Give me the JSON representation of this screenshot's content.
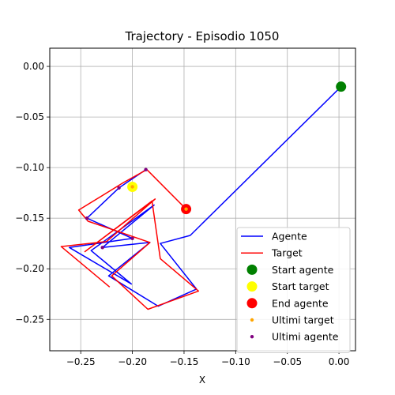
{
  "chart_data": {
    "type": "line",
    "title": "Trajectory - Episodio 1050",
    "xlabel": "X",
    "ylabel": "",
    "xlim": [
      -0.28,
      0.016
    ],
    "ylim": [
      -0.281,
      0.018
    ],
    "xticks": [
      -0.25,
      -0.2,
      -0.15,
      -0.1,
      -0.05,
      0.0
    ],
    "xtick_labels": [
      "−0.25",
      "−0.20",
      "−0.15",
      "−0.10",
      "−0.05",
      "0.00"
    ],
    "yticks": [
      0.0,
      -0.05,
      -0.1,
      -0.15,
      -0.2,
      -0.25
    ],
    "ytick_labels": [
      "0.00",
      "−0.05",
      "−0.10",
      "−0.15",
      "−0.20",
      "−0.25"
    ],
    "grid": true,
    "legend_position": "bottom-right",
    "series": [
      {
        "name": "Agente",
        "color": "#0000ff",
        "kind": "line",
        "points": [
          [
            0.002,
            -0.02
          ],
          [
            -0.144,
            -0.167
          ],
          [
            -0.173,
            -0.175
          ],
          [
            -0.138,
            -0.22
          ],
          [
            -0.175,
            -0.237
          ],
          [
            -0.223,
            -0.207
          ],
          [
            -0.183,
            -0.174
          ],
          [
            -0.229,
            -0.179
          ],
          [
            -0.179,
            -0.137
          ],
          [
            -0.24,
            -0.182
          ],
          [
            -0.201,
            -0.215
          ],
          [
            -0.261,
            -0.179
          ],
          [
            -0.2,
            -0.17
          ],
          [
            -0.244,
            -0.15
          ],
          [
            -0.213,
            -0.12
          ],
          [
            -0.187,
            -0.102
          ]
        ]
      },
      {
        "name": "Target",
        "color": "#ff0000",
        "kind": "line",
        "points": [
          [
            -0.148,
            -0.141
          ],
          [
            -0.186,
            -0.102
          ],
          [
            -0.209,
            -0.115
          ],
          [
            -0.252,
            -0.142
          ],
          [
            -0.243,
            -0.153
          ],
          [
            -0.183,
            -0.174
          ],
          [
            -0.22,
            -0.207
          ],
          [
            -0.185,
            -0.24
          ],
          [
            -0.136,
            -0.222
          ],
          [
            -0.173,
            -0.19
          ],
          [
            -0.181,
            -0.133
          ],
          [
            -0.246,
            -0.183
          ],
          [
            -0.178,
            -0.131
          ],
          [
            -0.225,
            -0.173
          ],
          [
            -0.269,
            -0.178
          ],
          [
            -0.222,
            -0.218
          ]
        ]
      },
      {
        "name": "Start agente",
        "color": "#008000",
        "kind": "marker",
        "size": "large",
        "points": [
          [
            0.002,
            -0.02
          ]
        ]
      },
      {
        "name": "Start target",
        "color": "#ffff00",
        "kind": "marker",
        "size": "large",
        "points": [
          [
            -0.2,
            -0.119
          ]
        ]
      },
      {
        "name": "End agente",
        "color": "#ff0000",
        "kind": "marker",
        "size": "large",
        "points": [
          [
            -0.148,
            -0.141
          ]
        ]
      },
      {
        "name": "Ultimi target",
        "color": "#ffa500",
        "kind": "marker",
        "size": "small",
        "points": [
          [
            -0.2,
            -0.119
          ],
          [
            -0.148,
            -0.141
          ]
        ]
      },
      {
        "name": "Ultimi agente",
        "color": "#800080",
        "kind": "marker",
        "size": "small",
        "points": [
          [
            -0.2,
            -0.17
          ],
          [
            -0.244,
            -0.15
          ],
          [
            -0.213,
            -0.12
          ],
          [
            -0.187,
            -0.102
          ],
          [
            -0.229,
            -0.179
          ]
        ]
      }
    ]
  }
}
